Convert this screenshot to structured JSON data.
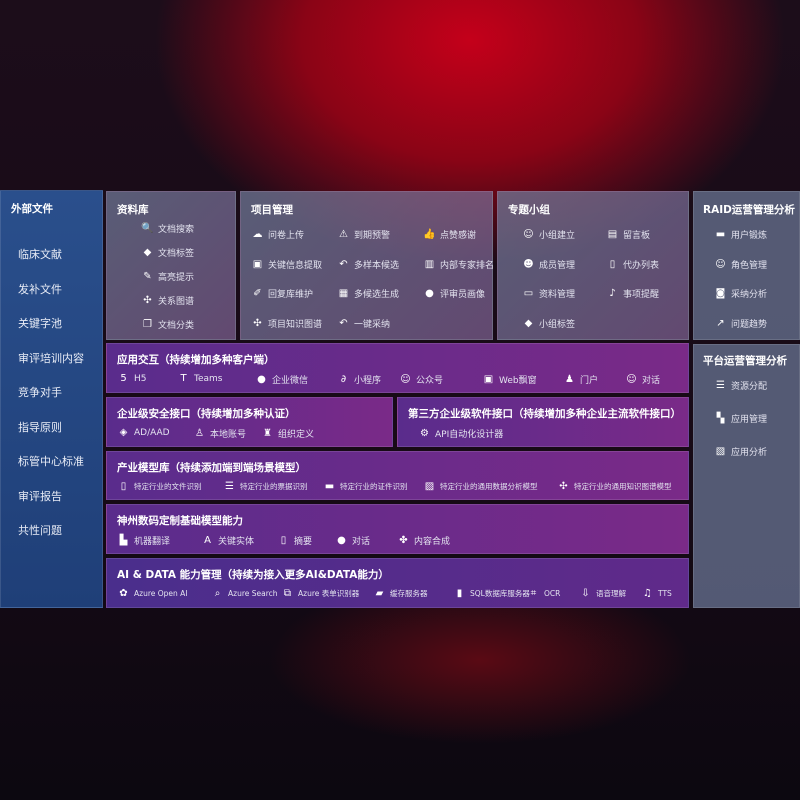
{
  "sidebar": {
    "title": "外部文件",
    "items": [
      "临床文献",
      "发补文件",
      "关键字池",
      "审评培训内容",
      "竞争对手",
      "指导原则",
      "标管中心标准",
      "审评报告",
      "共性问题"
    ]
  },
  "library": {
    "title": "资料库",
    "items": [
      {
        "icon": "doc-search-icon",
        "label": "文档搜索"
      },
      {
        "icon": "tag-icon",
        "label": "文档标签"
      },
      {
        "icon": "pen-icon",
        "label": "高亮提示"
      },
      {
        "icon": "graph-icon",
        "label": "关系图谱"
      },
      {
        "icon": "doc-copy-icon",
        "label": "文档分类"
      }
    ]
  },
  "project": {
    "title": "项目管理",
    "items": [
      {
        "icon": "cloud-upload-icon",
        "label": "问卷上传"
      },
      {
        "icon": "alarm-icon",
        "label": "到期预警"
      },
      {
        "icon": "thumbs-up-icon",
        "label": "点赞感谢"
      },
      {
        "icon": "window-icon",
        "label": "关键信息提取"
      },
      {
        "icon": "reply-icon",
        "label": "多样本候选"
      },
      {
        "icon": "ranking-icon",
        "label": "内部专家排名"
      },
      {
        "icon": "edit-icon",
        "label": "回复库维护"
      },
      {
        "icon": "puzzle-icon",
        "label": "多候选生成"
      },
      {
        "icon": "person-icon",
        "label": "评审员画像"
      },
      {
        "icon": "graph-icon",
        "label": "项目知识图谱"
      },
      {
        "icon": "reply-icon",
        "label": "一键采纳"
      }
    ]
  },
  "group": {
    "title": "专题小组",
    "items": [
      {
        "icon": "users-icon",
        "label": "小组建立"
      },
      {
        "icon": "bbs-icon",
        "label": "留言板"
      },
      {
        "icon": "user-add-icon",
        "label": "成员管理"
      },
      {
        "icon": "clipboard-icon",
        "label": "代办列表"
      },
      {
        "icon": "folder-icon",
        "label": "资料管理"
      },
      {
        "icon": "bell-icon",
        "label": "事项提醒"
      },
      {
        "icon": "tag-icon",
        "label": "小组标签"
      }
    ]
  },
  "raid": {
    "title": "RAID运营管理分析",
    "items": [
      {
        "icon": "id-card-icon",
        "label": "用户锻炼"
      },
      {
        "icon": "users-icon",
        "label": "角色管理"
      },
      {
        "icon": "qa-icon",
        "label": "采纳分析"
      },
      {
        "icon": "trend-icon",
        "label": "问题趋势"
      }
    ]
  },
  "platform": {
    "title": "平台运营管理分析",
    "items": [
      {
        "icon": "list-icon",
        "label": "资源分配"
      },
      {
        "icon": "apps-icon",
        "label": "应用管理"
      },
      {
        "icon": "chart-icon",
        "label": "应用分析"
      }
    ]
  },
  "app": {
    "title": "应用交互（持续增加多种客户端）",
    "items": [
      {
        "icon": "html5-icon",
        "label": "H5"
      },
      {
        "icon": "teams-icon",
        "label": "Teams"
      },
      {
        "icon": "wechat-icon",
        "label": "企业微信"
      },
      {
        "icon": "miniprogram-icon",
        "label": "小程序"
      },
      {
        "icon": "users-icon",
        "label": "公众号"
      },
      {
        "icon": "window-icon",
        "label": "Web飘窗"
      },
      {
        "icon": "portal-icon",
        "label": "门户"
      },
      {
        "icon": "chat-users-icon",
        "label": "对话"
      }
    ]
  },
  "security": {
    "title": "企业级安全接口（持续增加多种认证）",
    "items": [
      {
        "icon": "ad-icon",
        "label": "AD/AAD"
      },
      {
        "icon": "account-icon",
        "label": "本地账号"
      },
      {
        "icon": "org-icon",
        "label": "组织定义"
      }
    ]
  },
  "third": {
    "title": "第三方企业级软件接口（持续增加多种企业主流软件接口）",
    "items": [
      {
        "icon": "gear-icon",
        "label": "API自动化设计器"
      }
    ]
  },
  "industry": {
    "title": "产业模型库（持续添加端到端场景模型）",
    "items": [
      {
        "icon": "file-icon",
        "label": "特定行业的文件识别"
      },
      {
        "icon": "receipt-icon",
        "label": "特定行业的票据识别"
      },
      {
        "icon": "id-card-icon",
        "label": "特定行业的证件识别"
      },
      {
        "icon": "image-icon",
        "label": "特定行业的通用数据分析模型"
      },
      {
        "icon": "graph-icon",
        "label": "特定行业的通用知识图谱模型"
      }
    ]
  },
  "base": {
    "title": "神州数码定制基础模型能力",
    "items": [
      {
        "icon": "translate-icon",
        "label": "机器翻译"
      },
      {
        "icon": "entity-icon",
        "label": "关键实体"
      },
      {
        "icon": "summary-icon",
        "label": "摘要"
      },
      {
        "icon": "chat-icon",
        "label": "对话"
      },
      {
        "icon": "compose-icon",
        "label": "内容合成"
      }
    ]
  },
  "aidata": {
    "title": "AI & DATA 能力管理（持续为接入更多AI&DATA能力）",
    "items": [
      {
        "icon": "openai-icon",
        "label": "Azure Open AI"
      },
      {
        "icon": "search-icon",
        "label": "Azure Search"
      },
      {
        "icon": "form-icon",
        "label": "Azure 表单识别器"
      },
      {
        "icon": "cache-icon",
        "label": "缓存服务器"
      },
      {
        "icon": "sql-icon",
        "label": "SQL数据库服务器"
      },
      {
        "icon": "ocr-icon",
        "label": "OCR"
      },
      {
        "icon": "speech-icon",
        "label": "语音理解"
      },
      {
        "icon": "tts-icon",
        "label": "TTS"
      }
    ]
  }
}
